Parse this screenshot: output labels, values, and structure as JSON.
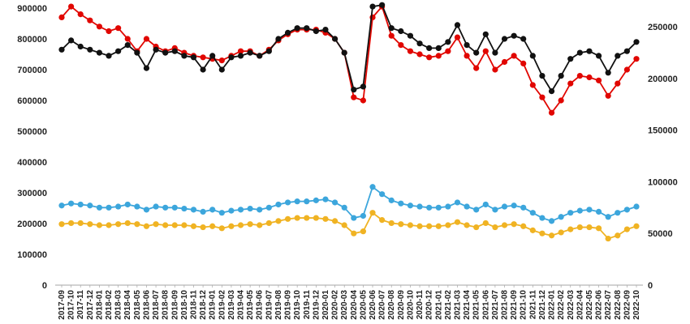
{
  "chart_data": {
    "type": "line",
    "title": "",
    "xlabel": "",
    "ylabel": "",
    "legend": "none",
    "grid": "off",
    "categories": [
      "2017-09",
      "2017-10",
      "2017-11",
      "2017-12",
      "2018-01",
      "2018-02",
      "2018-03",
      "2018-04",
      "2018-05",
      "2018-06",
      "2018-07",
      "2018-08",
      "2018-09",
      "2018-10",
      "2018-11",
      "2018-12",
      "2019-01",
      "2019-02",
      "2019-03",
      "2019-04",
      "2019-05",
      "2019-06",
      "2019-07",
      "2019-08",
      "2019-09",
      "2019-10",
      "2019-11",
      "2019-12",
      "2020-01",
      "2020-02",
      "2020-03",
      "2020-04",
      "2020-05",
      "2020-06",
      "2020-07",
      "2020-08",
      "2020-09",
      "2020-10",
      "2020-11",
      "2020-12",
      "2021-01",
      "2021-02",
      "2021-03",
      "2021-04",
      "2021-05",
      "2021-06",
      "2021-07",
      "2021-08",
      "2021-09",
      "2021-10",
      "2021-11",
      "2021-12",
      "2022-01",
      "2022-02",
      "2022-03",
      "2022-04",
      "2022-05",
      "2022-06",
      "2022-07",
      "2022-08",
      "2022-09",
      "2022-10"
    ],
    "left_axis": {
      "min": 0,
      "max": 900000,
      "ticks": [
        0,
        100000,
        200000,
        300000,
        400000,
        500000,
        600000,
        700000,
        800000,
        900000
      ]
    },
    "right_axis": {
      "min": 0,
      "max": 250000,
      "ticks": [
        0,
        50000,
        100000,
        150000,
        200000,
        250000
      ]
    },
    "series": [
      {
        "id": "yellow",
        "color": "#f0b323",
        "axis": "right",
        "marker": "circle",
        "values": [
          59000,
          60000,
          60000,
          59000,
          58000,
          58000,
          59000,
          60000,
          59000,
          57000,
          59000,
          58000,
          58000,
          58000,
          57000,
          56000,
          57000,
          55000,
          57000,
          58000,
          59000,
          58000,
          60000,
          62000,
          64000,
          65000,
          65000,
          65000,
          64000,
          62000,
          58000,
          50000,
          52000,
          70000,
          63000,
          60000,
          59000,
          58000,
          57000,
          57000,
          57000,
          58000,
          61000,
          58000,
          56000,
          60000,
          56000,
          58000,
          59000,
          57000,
          53000,
          50000,
          48000,
          51000,
          54000,
          56000,
          56000,
          55000,
          45000,
          48000,
          54000,
          57000
        ]
      },
      {
        "id": "blue",
        "color": "#3ca6dc",
        "axis": "right",
        "marker": "circle",
        "values": [
          77000,
          79000,
          78000,
          77000,
          75000,
          75000,
          76000,
          78000,
          76000,
          73000,
          76000,
          75000,
          75000,
          74000,
          73000,
          71000,
          73000,
          70000,
          72000,
          73000,
          74000,
          73000,
          75000,
          78000,
          80000,
          81000,
          81000,
          82000,
          83000,
          80000,
          75000,
          65000,
          67000,
          95000,
          88000,
          82000,
          79000,
          77000,
          76000,
          75000,
          75000,
          76000,
          80000,
          76000,
          73000,
          78000,
          73000,
          76000,
          77000,
          75000,
          70000,
          65000,
          62000,
          66000,
          70000,
          72000,
          73000,
          71000,
          66000,
          70000,
          73000,
          76000
        ]
      },
      {
        "id": "red",
        "color": "#e10600",
        "axis": "left",
        "marker": "circle",
        "values": [
          870000,
          905000,
          880000,
          860000,
          840000,
          825000,
          835000,
          800000,
          760000,
          800000,
          775000,
          760000,
          770000,
          755000,
          745000,
          740000,
          735000,
          730000,
          745000,
          760000,
          760000,
          745000,
          765000,
          795000,
          815000,
          830000,
          830000,
          830000,
          820000,
          800000,
          755000,
          610000,
          600000,
          870000,
          905000,
          810000,
          780000,
          760000,
          750000,
          740000,
          745000,
          760000,
          805000,
          745000,
          705000,
          760000,
          700000,
          725000,
          745000,
          720000,
          650000,
          610000,
          560000,
          600000,
          655000,
          680000,
          675000,
          665000,
          615000,
          655000,
          700000,
          735000
        ]
      },
      {
        "id": "black",
        "color": "#111111",
        "axis": "left",
        "marker": "circle",
        "values": [
          765000,
          795000,
          775000,
          765000,
          755000,
          745000,
          760000,
          780000,
          755000,
          705000,
          765000,
          755000,
          760000,
          745000,
          740000,
          700000,
          745000,
          700000,
          740000,
          745000,
          755000,
          745000,
          760000,
          800000,
          820000,
          835000,
          835000,
          825000,
          830000,
          800000,
          755000,
          635000,
          645000,
          905000,
          910000,
          835000,
          825000,
          810000,
          785000,
          770000,
          770000,
          790000,
          845000,
          780000,
          755000,
          815000,
          755000,
          800000,
          810000,
          800000,
          745000,
          680000,
          630000,
          680000,
          735000,
          755000,
          760000,
          745000,
          690000,
          745000,
          760000,
          790000
        ]
      }
    ],
    "axis_label_color": "#222222",
    "axis_line_color": "#a6a6a6"
  }
}
